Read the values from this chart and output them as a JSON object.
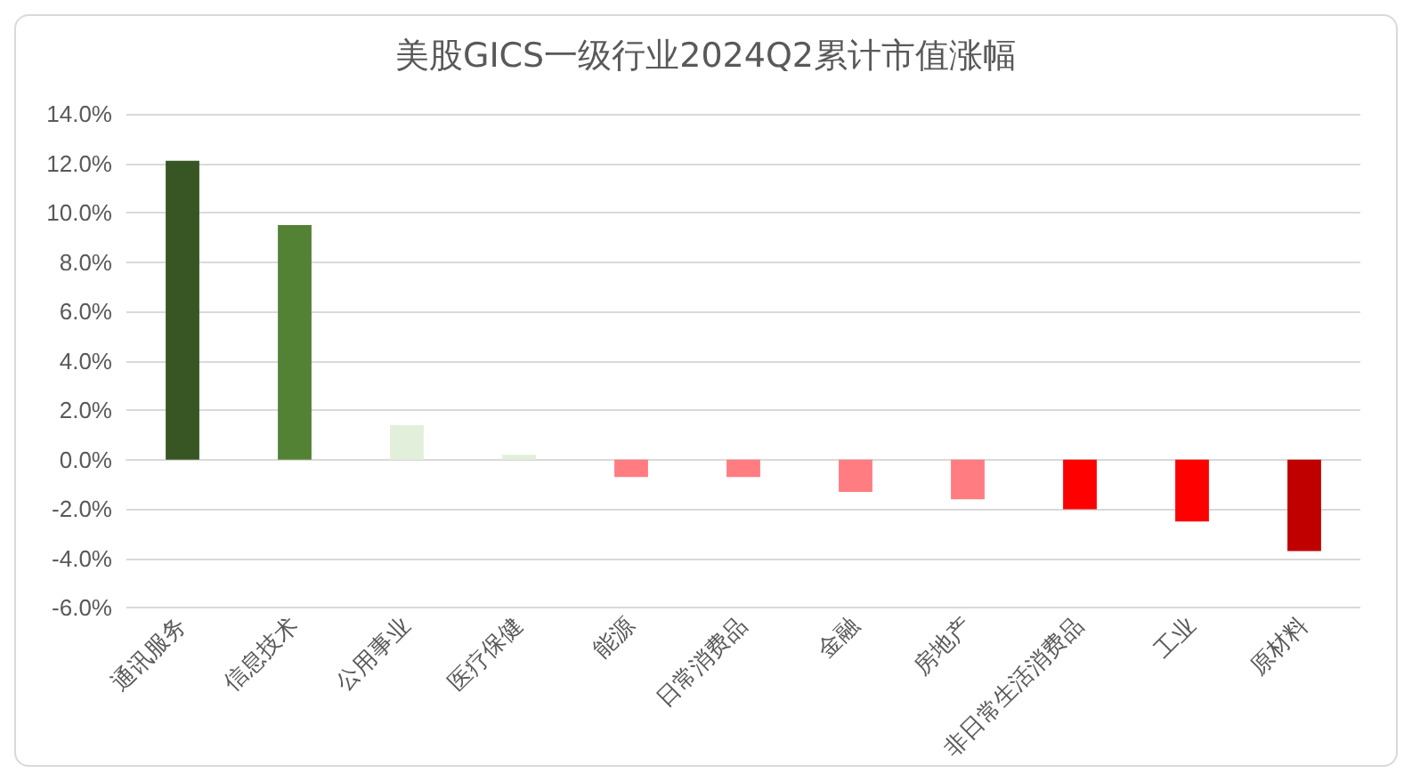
{
  "chart_data": {
    "type": "bar",
    "title": "美股GICS一级行业2024Q2累计市值涨幅",
    "categories": [
      "通讯服务",
      "信息技术",
      "公用事业",
      "医疗保健",
      "能源",
      "日常消费品",
      "金融",
      "房地产",
      "非日常生活消费品",
      "工业",
      "原材料"
    ],
    "values": [
      12.1,
      9.5,
      1.4,
      0.2,
      -0.7,
      -0.7,
      -1.3,
      -1.6,
      -2.0,
      -2.5,
      -3.7
    ],
    "colors": [
      "#375623",
      "#548235",
      "#e2efda",
      "#e2efda",
      "#ff7c80",
      "#ff7c80",
      "#ff7c80",
      "#ff7c80",
      "#ff0000",
      "#ff0000",
      "#c00000"
    ],
    "ylim": [
      -6,
      14
    ],
    "yticks": [
      {
        "value": -6,
        "label": "-6.0%"
      },
      {
        "value": -4,
        "label": "-4.0%"
      },
      {
        "value": -2,
        "label": "-2.0%"
      },
      {
        "value": 0,
        "label": "0.0%"
      },
      {
        "value": 2,
        "label": "2.0%"
      },
      {
        "value": 4,
        "label": "4.0%"
      },
      {
        "value": 6,
        "label": "6.0%"
      },
      {
        "value": 8,
        "label": "8.0%"
      },
      {
        "value": 10,
        "label": "10.0%"
      },
      {
        "value": 12,
        "label": "12.0%"
      },
      {
        "value": 14,
        "label": "14.0%"
      }
    ],
    "grid": "y"
  }
}
